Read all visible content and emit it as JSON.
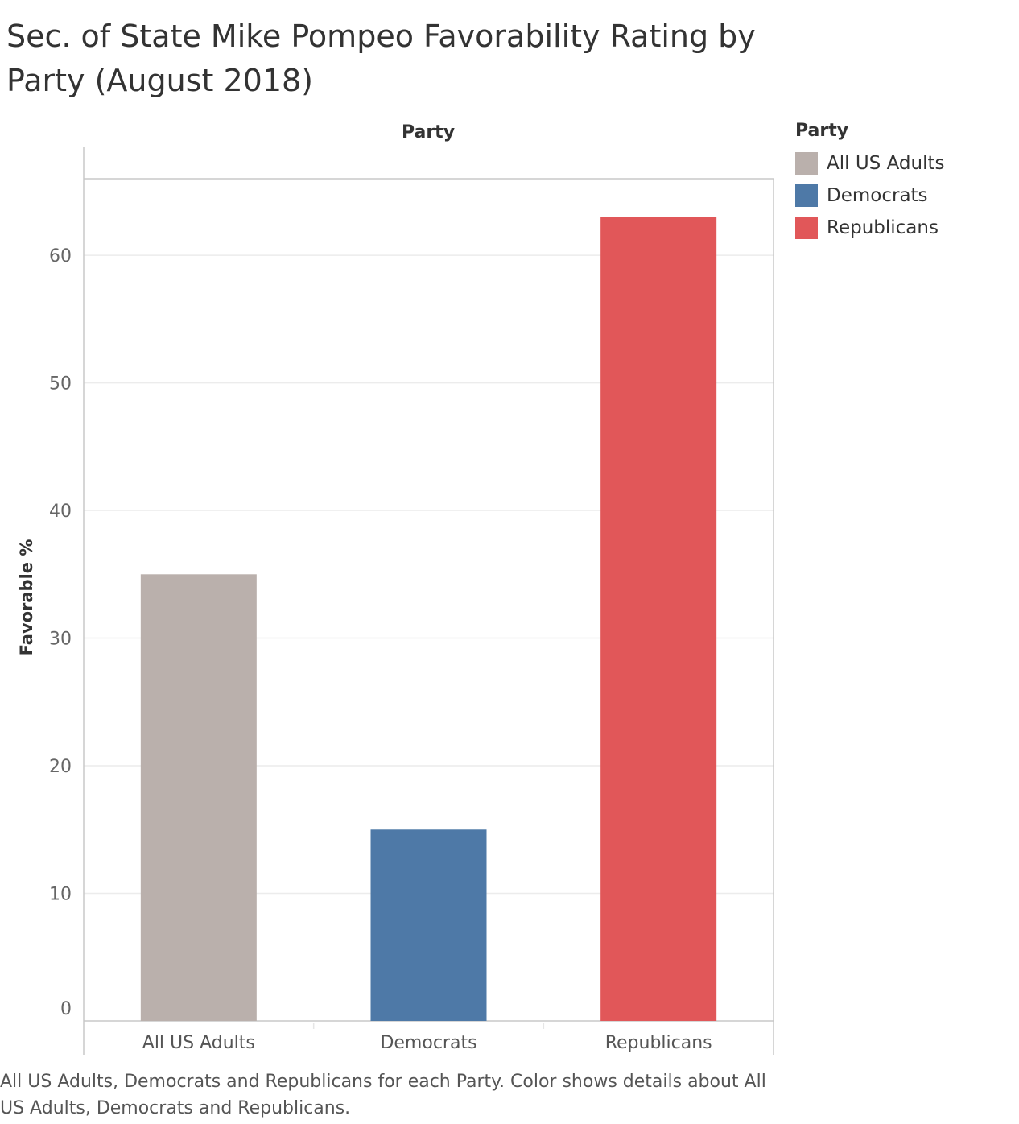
{
  "title": "Sec. of State Mike Pompeo Favorability Rating by Party (August 2018)",
  "caption": "All US Adults, Democrats and Republicans for each Party.  Color shows details about All US Adults, Democrats and Republicans.",
  "legend": {
    "title": "Party",
    "items": [
      {
        "label": "All US Adults",
        "color": "#bab0ac"
      },
      {
        "label": "Democrats",
        "color": "#4e79a7"
      },
      {
        "label": "Republicans",
        "color": "#e15759"
      }
    ]
  },
  "chart_data": {
    "type": "bar",
    "column_header": "Party",
    "categories": [
      "All US Adults",
      "Democrats",
      "Republicans"
    ],
    "values": [
      35,
      15,
      63
    ],
    "colors": [
      "#bab0ac",
      "#4e79a7",
      "#e15759"
    ],
    "xlabel": "",
    "ylabel": "Favorable %",
    "ylim": [
      0,
      66
    ],
    "yticks": [
      0,
      10,
      20,
      30,
      40,
      50,
      60
    ],
    "grid": true,
    "legend_position": "right"
  }
}
